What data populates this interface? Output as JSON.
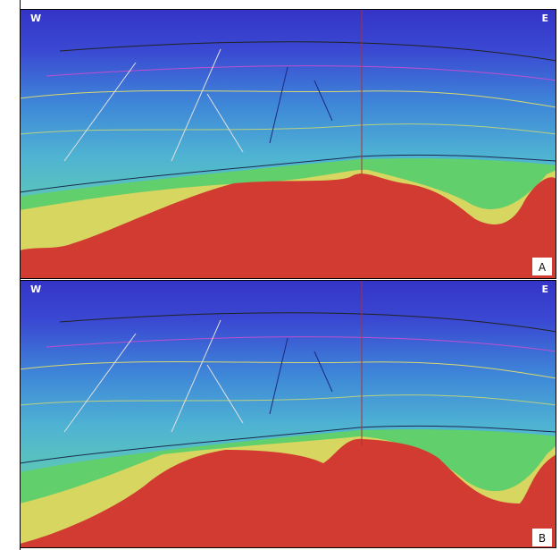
{
  "panels": [
    {
      "west": "W",
      "east": "E",
      "label": "A"
    },
    {
      "west": "W",
      "east": "E",
      "label": "B"
    }
  ]
}
